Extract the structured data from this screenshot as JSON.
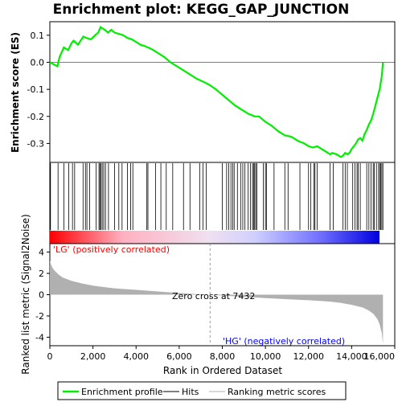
{
  "chart_data": {
    "type": "line",
    "title": "Enrichment plot: KEGG_GAP_JUNCTION",
    "es_panel": {
      "ylabel": "Enrichment score (ES)",
      "ylim": [
        -0.37,
        0.15
      ],
      "yticks": [
        0.1,
        0.0,
        -0.1,
        -0.2,
        -0.3
      ],
      "ytick_labels": [
        "0.1",
        "0.0",
        "-0.1",
        "-0.2",
        "-0.3"
      ],
      "series": [
        {
          "name": "Enrichment profile",
          "color": "#00ee00",
          "x": [
            0,
            350,
            450,
            650,
            850,
            1000,
            1100,
            1300,
            1550,
            1700,
            1900,
            2100,
            2250,
            2350,
            2450,
            2550,
            2700,
            2850,
            3000,
            3200,
            3400,
            3600,
            3800,
            4000,
            4200,
            4400,
            4700,
            5000,
            5300,
            5600,
            6000,
            6400,
            6800,
            7200,
            7432,
            7700,
            8000,
            8300,
            8600,
            8900,
            9200,
            9500,
            9700,
            10000,
            10300,
            10600,
            10900,
            11200,
            11500,
            11800,
            12000,
            12200,
            12400,
            12600,
            12800,
            13000,
            13100,
            13300,
            13500,
            13600,
            13700,
            13800,
            13900,
            14000,
            14100,
            14200,
            14300,
            14400,
            14500,
            14600,
            14700,
            14800,
            14900,
            15000,
            15100,
            15200,
            15300,
            15400,
            15450
          ],
          "y": [
            0.0,
            -0.015,
            0.02,
            0.055,
            0.045,
            0.07,
            0.08,
            0.065,
            0.095,
            0.09,
            0.085,
            0.1,
            0.11,
            0.13,
            0.125,
            0.12,
            0.11,
            0.12,
            0.11,
            0.105,
            0.1,
            0.09,
            0.085,
            0.075,
            0.065,
            0.06,
            0.05,
            0.035,
            0.02,
            0.0,
            -0.02,
            -0.04,
            -0.06,
            -0.075,
            -0.085,
            -0.1,
            -0.12,
            -0.14,
            -0.16,
            -0.175,
            -0.19,
            -0.2,
            -0.2,
            -0.22,
            -0.235,
            -0.255,
            -0.27,
            -0.275,
            -0.29,
            -0.3,
            -0.31,
            -0.315,
            -0.31,
            -0.32,
            -0.33,
            -0.34,
            -0.335,
            -0.34,
            -0.35,
            -0.345,
            -0.335,
            -0.34,
            -0.335,
            -0.32,
            -0.31,
            -0.3,
            -0.285,
            -0.28,
            -0.29,
            -0.265,
            -0.25,
            -0.23,
            -0.215,
            -0.19,
            -0.16,
            -0.13,
            -0.1,
            -0.05,
            0.0
          ]
        }
      ]
    },
    "hits_panel": {
      "label": "Hits",
      "hit_ranks": [
        30,
        380,
        650,
        880,
        1050,
        1150,
        1540,
        1650,
        1720,
        1850,
        2150,
        2280,
        2320,
        2370,
        2430,
        2500,
        2580,
        2720,
        3000,
        3200,
        3350,
        3600,
        3750,
        3850,
        4500,
        4550,
        4900,
        5150,
        5400,
        5700,
        6200,
        6500,
        6950,
        7100,
        7250,
        8000,
        8200,
        8300,
        8400,
        8480,
        8550,
        8700,
        8850,
        8950,
        9050,
        9200,
        9300,
        9400,
        9450,
        9500,
        9550,
        9600,
        9900,
        10000,
        10050,
        10400,
        10900,
        11050,
        11600,
        12000,
        12100,
        12250,
        12300,
        12400,
        13000,
        13150,
        13600,
        13700,
        13800,
        14050,
        14150,
        14250,
        14300,
        14400,
        14700,
        14800,
        14900,
        15000,
        15050,
        15150,
        15250,
        15300,
        15350,
        15400,
        15450
      ],
      "gradient": {
        "positive_color": "#ff0000",
        "negative_color": "#0000ff",
        "neutral_color": "#ffffff"
      }
    },
    "metric_panel": {
      "ylabel": "Ranked list metric (Signal2Noise)",
      "ylim": [
        -4.8,
        4.8
      ],
      "yticks": [
        4,
        2,
        0,
        -2,
        -4
      ],
      "ytick_labels": [
        "4",
        "2",
        "0",
        "-2",
        "-4"
      ],
      "x": [
        0,
        100,
        200,
        400,
        600,
        800,
        1000,
        1500,
        2000,
        3000,
        4000,
        5000,
        6000,
        7000,
        7432,
        8000,
        9000,
        10000,
        11000,
        12000,
        13000,
        13500,
        14000,
        14500,
        14800,
        15000,
        15200,
        15300,
        15400,
        15450
      ],
      "y": [
        3.2,
        2.6,
        2.3,
        1.9,
        1.6,
        1.45,
        1.3,
        1.05,
        0.85,
        0.6,
        0.45,
        0.3,
        0.15,
        0.03,
        0.0,
        -0.08,
        -0.2,
        -0.32,
        -0.42,
        -0.52,
        -0.65,
        -0.78,
        -0.95,
        -1.2,
        -1.5,
        -1.8,
        -2.3,
        -2.8,
        -3.6,
        -4.6
      ],
      "zero_cross_label": "Zero cross at 7432",
      "zero_cross": 7432,
      "pos_label": "'LG' (positively correlated)",
      "neg_label": "'HG' (negatively correlated)",
      "pos_color": "#ff0000",
      "neg_color": "#0000ff",
      "fill_color": "#b0b0b0"
    },
    "xlabel": "Rank in Ordered Dataset",
    "xlim": [
      0,
      16000
    ],
    "xticks": [
      0,
      2000,
      4000,
      6000,
      8000,
      10000,
      12000,
      14000,
      16000
    ],
    "xtick_labels": [
      "0",
      "2,000",
      "4,000",
      "6,000",
      "8,000",
      "10,000",
      "12,000",
      "14,000",
      "16,000"
    ],
    "legend": {
      "position": "bottom",
      "items": [
        {
          "label": "Enrichment profile",
          "color": "#00ee00"
        },
        {
          "label": "Hits",
          "color": "#000000"
        },
        {
          "label": "Ranking metric scores",
          "color": "#b0b0b0"
        }
      ]
    }
  }
}
